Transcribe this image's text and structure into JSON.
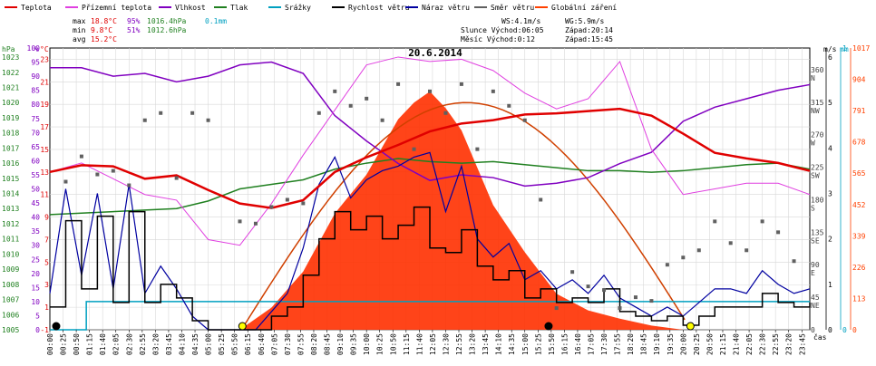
{
  "chart_data": {
    "type": "line",
    "title": "20.6.2014",
    "legend": [
      {
        "label": "Teplota",
        "color": "#e00000"
      },
      {
        "label": "Přízemní teplota",
        "color": "#e040e0"
      },
      {
        "label": "Vlhkost",
        "color": "#8000c0"
      },
      {
        "label": "Tlak",
        "color": "#208020"
      },
      {
        "label": "Srážky",
        "color": "#00a0c0"
      },
      {
        "label": "Rychlost větru",
        "color": "#000000"
      },
      {
        "label": "Náraz větru",
        "color": "#0000a0"
      },
      {
        "label": "Směr větru",
        "color": "#606060"
      },
      {
        "label": "Globální záření",
        "color": "#ff4000"
      }
    ],
    "stats": {
      "max": {
        "label": "max",
        "temp": "18.8°C",
        "hum": "95%",
        "press": "1016.4hPa",
        "rain": "0.1mm"
      },
      "min": {
        "label": "min",
        "temp": "9.8°C",
        "hum": "51%",
        "press": "1012.6hPa"
      },
      "avg": {
        "label": "avg",
        "temp": "15.2°C"
      }
    },
    "info": {
      "ws": "WS:4.1m/s",
      "wg": "WG:5.9m/s",
      "sun": "Slunce Východ:06:05",
      "sunset": "Západ:20:14",
      "moon": "Měsíc Východ:0:12",
      "moonset": "Západ:15:45"
    },
    "axes": {
      "hpa": {
        "unit": "hPa",
        "ticks": [
          "1023",
          "1022",
          "1021",
          "1020",
          "1019",
          "1018",
          "1017",
          "1016",
          "1015",
          "1014",
          "1013",
          "1012",
          "1011",
          "1010",
          "1009",
          "1008",
          "1007",
          "1006",
          "1005"
        ],
        "range": [
          1005,
          1023.6
        ]
      },
      "percent": {
        "unit": "%",
        "ticks": [
          "100",
          "95",
          "90",
          "85",
          "80",
          "75",
          "70",
          "65",
          "60",
          "55",
          "50",
          "45",
          "40",
          "35",
          "30",
          "25",
          "20",
          "15",
          "10",
          "5",
          "0"
        ],
        "range": [
          0,
          100
        ]
      },
      "celsius": {
        "unit": "°C",
        "ticks": [
          "23",
          "21",
          "19",
          "17",
          "15",
          "13",
          "11",
          "9",
          "7",
          "5",
          "3",
          "1",
          "-1"
        ],
        "range": [
          -1,
          24
        ]
      },
      "direction": {
        "unit": "m/s",
        "ticks": [
          "360",
          "315",
          "270",
          "225",
          "180",
          "135",
          "90",
          "45",
          "0"
        ],
        "cardinal": [
          "N",
          "NW",
          "W",
          "SW",
          "S",
          "SE",
          "E",
          "NE",
          ""
        ]
      },
      "ms": {
        "ticks": [
          "6",
          "5",
          "4",
          "3",
          "2",
          "1",
          "0"
        ],
        "range": [
          0,
          6.2
        ]
      },
      "mm": {
        "unit": "mm",
        "ticks": [
          "1",
          "0"
        ]
      },
      "radiation": {
        "ticks": [
          "1017",
          "904",
          "791",
          "678",
          "565",
          "452",
          "339",
          "226",
          "113",
          "0"
        ],
        "range": [
          0,
          1017
        ]
      },
      "time_label": "čas",
      "time_ticks": [
        "00:00",
        "00:25",
        "00:50",
        "01:15",
        "01:40",
        "02:05",
        "02:30",
        "02:55",
        "03:20",
        "03:45",
        "04:10",
        "04:35",
        "05:00",
        "05:25",
        "05:50",
        "06:15",
        "06:40",
        "07:05",
        "07:30",
        "07:55",
        "08:20",
        "08:45",
        "09:10",
        "09:35",
        "10:00",
        "10:25",
        "10:50",
        "11:15",
        "11:40",
        "12:05",
        "12:30",
        "12:55",
        "13:20",
        "13:45",
        "14:10",
        "14:35",
        "15:00",
        "15:25",
        "15:50",
        "16:15",
        "16:40",
        "17:05",
        "17:30",
        "17:55",
        "18:20",
        "18:45",
        "19:10",
        "19:35",
        "20:00",
        "20:25",
        "20:50",
        "21:15",
        "21:40",
        "22:05",
        "22:30",
        "22:55",
        "23:20",
        "23:45"
      ]
    },
    "series": [
      {
        "name": "Teplota",
        "unit": "°C",
        "x": [
          0,
          1,
          2,
          3,
          4,
          5,
          6,
          7,
          8,
          9,
          10,
          11,
          12,
          13,
          14,
          15,
          16,
          17,
          18,
          19,
          20,
          21,
          22,
          23,
          24
        ],
        "values": [
          13.0,
          13.6,
          13.5,
          12.4,
          12.7,
          11.4,
          10.2,
          9.8,
          10.5,
          13.0,
          14.3,
          15.4,
          16.6,
          17.3,
          17.6,
          18.1,
          18.2,
          18.4,
          18.6,
          18.0,
          16.4,
          14.7,
          14.2,
          13.8,
          13.1
        ]
      },
      {
        "name": "Přízemní teplota",
        "unit": "°C",
        "x": [
          0,
          1,
          2,
          3,
          4,
          5,
          6,
          7,
          8,
          9,
          10,
          11,
          12,
          13,
          14,
          15,
          16,
          17,
          18,
          19,
          20,
          21,
          22,
          23,
          24
        ],
        "values": [
          13.0,
          13.8,
          12.4,
          11.0,
          10.5,
          7.0,
          6.5,
          10.2,
          14.5,
          18.5,
          22.5,
          23.2,
          22.8,
          23.0,
          22.0,
          20.0,
          18.6,
          19.5,
          22.8,
          15.0,
          11.0,
          11.5,
          12.0,
          12.0,
          11.0
        ]
      },
      {
        "name": "Vlhkost",
        "unit": "%",
        "x": [
          0,
          1,
          2,
          3,
          4,
          5,
          6,
          7,
          8,
          9,
          10,
          11,
          12,
          13,
          14,
          15,
          16,
          17,
          18,
          19,
          20,
          21,
          22,
          23,
          24
        ],
        "values": [
          93,
          93,
          90,
          91,
          88,
          90,
          94,
          95,
          91,
          76,
          67,
          59,
          53,
          55,
          54,
          51,
          52,
          54,
          59,
          63,
          74,
          79,
          82,
          85,
          87
        ]
      },
      {
        "name": "Tlak",
        "unit": "hPa",
        "x": [
          0,
          1,
          2,
          3,
          4,
          5,
          6,
          7,
          8,
          9,
          10,
          11,
          12,
          13,
          14,
          15,
          16,
          17,
          18,
          19,
          20,
          21,
          22,
          23,
          24
        ],
        "values": [
          1012.6,
          1012.7,
          1012.8,
          1012.9,
          1013.0,
          1013.5,
          1014.3,
          1014.6,
          1014.9,
          1015.6,
          1016.0,
          1016.3,
          1016.1,
          1016.0,
          1016.1,
          1015.9,
          1015.7,
          1015.5,
          1015.5,
          1015.4,
          1015.5,
          1015.7,
          1015.9,
          1016.0,
          1015.6
        ]
      },
      {
        "name": "Srážky",
        "unit": "mm",
        "x": [
          0,
          1.1,
          1.15,
          24
        ],
        "values": [
          0,
          0,
          0.1,
          0.1
        ]
      },
      {
        "name": "Rychlost větru",
        "unit": "m/s",
        "x": [
          0,
          0.5,
          1,
          1.5,
          2,
          2.5,
          3,
          3.5,
          4,
          4.5,
          5,
          5.5,
          6,
          6.5,
          7,
          7.5,
          8,
          8.5,
          9,
          9.5,
          10,
          10.5,
          11,
          11.5,
          12,
          12.5,
          13,
          13.5,
          14,
          14.5,
          15,
          15.5,
          16,
          16.5,
          17,
          17.5,
          18,
          18.5,
          19,
          19.5,
          20,
          20.5,
          21,
          21.5,
          22,
          22.5,
          23,
          23.5,
          24
        ],
        "values": [
          0.5,
          2.4,
          0.9,
          2.5,
          0.6,
          2.6,
          0.6,
          1.0,
          0.7,
          0.2,
          0,
          0,
          0,
          0,
          0.3,
          0.5,
          1.2,
          2.0,
          2.6,
          2.2,
          2.5,
          2.0,
          2.3,
          2.7,
          1.8,
          1.7,
          2.2,
          1.4,
          1.1,
          1.3,
          0.7,
          0.9,
          0.6,
          0.7,
          0.6,
          0.9,
          0.4,
          0.3,
          0.2,
          0.3,
          0.1,
          0.3,
          0.5,
          0.5,
          0.5,
          0.8,
          0.6,
          0.5,
          0.6
        ]
      },
      {
        "name": "Náraz větru",
        "unit": "m/s",
        "x": [
          0,
          0.5,
          1,
          1.5,
          2,
          2.5,
          3,
          3.5,
          4,
          4.5,
          5,
          5.5,
          6,
          6.5,
          7,
          7.5,
          8,
          8.5,
          9,
          9.5,
          10,
          10.5,
          11,
          11.5,
          12,
          12.5,
          13,
          13.5,
          14,
          14.5,
          15,
          15.5,
          16,
          16.5,
          17,
          17.5,
          18,
          18.5,
          19,
          19.5,
          20,
          20.5,
          21,
          21.5,
          22,
          22.5,
          23,
          23.5,
          24
        ],
        "values": [
          0.8,
          3.1,
          1.2,
          3.0,
          0.9,
          3.2,
          0.8,
          1.4,
          0.9,
          0.3,
          0,
          0,
          0,
          0,
          0.4,
          0.8,
          1.8,
          3.2,
          3.8,
          2.9,
          3.3,
          3.5,
          3.6,
          3.8,
          3.9,
          2.6,
          3.6,
          2.0,
          1.6,
          1.9,
          1.1,
          1.3,
          0.9,
          1.1,
          0.8,
          1.2,
          0.7,
          0.5,
          0.3,
          0.5,
          0.3,
          0.6,
          0.9,
          0.9,
          0.8,
          1.3,
          1.0,
          0.8,
          0.9
        ]
      },
      {
        "name": "Směr větru",
        "unit": "°",
        "x": [
          0.5,
          1,
          1.5,
          2,
          2.5,
          3,
          3.5,
          4,
          4.5,
          5,
          6,
          6.5,
          7,
          7.5,
          8,
          8.5,
          9,
          9.5,
          10,
          10.5,
          11,
          11.5,
          12,
          12.5,
          13,
          13.5,
          14,
          14.5,
          15,
          15.5,
          16,
          16.5,
          17,
          17.5,
          18,
          18.5,
          19,
          19.5,
          20,
          20.5,
          21,
          21.5,
          22,
          22.5,
          23,
          23.5
        ],
        "values": [
          205,
          240,
          215,
          220,
          200,
          290,
          300,
          210,
          300,
          290,
          150,
          147,
          170,
          180,
          175,
          300,
          330,
          310,
          320,
          290,
          340,
          250,
          330,
          300,
          340,
          250,
          330,
          310,
          290,
          180,
          30,
          80,
          60,
          55,
          30,
          45,
          40,
          90,
          100,
          110,
          150,
          120,
          110,
          150,
          135,
          95
        ]
      },
      {
        "name": "Globální záření",
        "unit": "W/m²",
        "x": [
          6,
          7,
          8,
          9,
          10,
          11,
          11.5,
          12,
          12.5,
          13,
          14,
          15,
          16,
          17,
          18,
          19,
          20
        ],
        "values": [
          0,
          80,
          210,
          420,
          560,
          760,
          820,
          860,
          800,
          720,
          450,
          280,
          130,
          70,
          40,
          15,
          0
        ]
      }
    ],
    "ylabel": "",
    "xlabel": "čas"
  }
}
